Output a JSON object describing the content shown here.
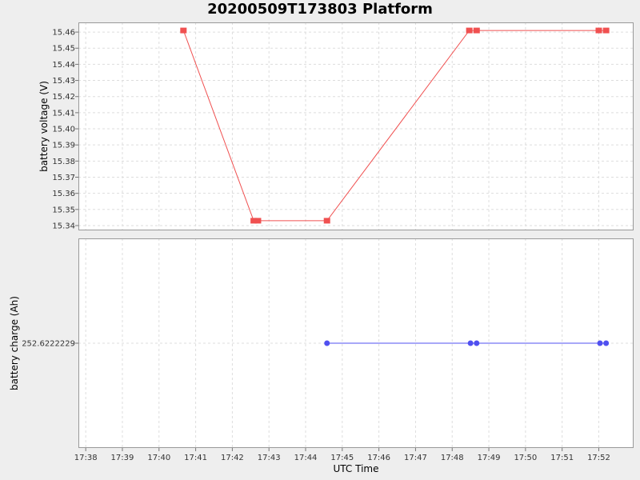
{
  "chart_data": {
    "type": "line",
    "title": "20200509T173803 Platform",
    "xlabel": "UTC Time",
    "x_ticks": [
      "17:38",
      "17:39",
      "17:40",
      "17:41",
      "17:42",
      "17:43",
      "17:44",
      "17:45",
      "17:46",
      "17:47",
      "17:48",
      "17:49",
      "17:50",
      "17:51",
      "17:52"
    ],
    "xlim": [
      "17:37:48",
      "17:52:57"
    ],
    "grid": true,
    "panels": [
      {
        "ylabel": "battery voltage (V)",
        "ylim": [
          15.337,
          15.466
        ],
        "y_ticks": [
          15.34,
          15.35,
          15.36,
          15.37,
          15.38,
          15.39,
          15.4,
          15.41,
          15.42,
          15.43,
          15.44,
          15.45,
          15.46
        ],
        "y_tick_labels": [
          "15.34",
          "15.35",
          "15.36",
          "15.37",
          "15.38",
          "15.39",
          "15.40",
          "15.41",
          "15.42",
          "15.43",
          "15.44",
          "15.45",
          "15.46"
        ],
        "color": "#f05050",
        "marker": "square",
        "series": [
          {
            "values": [
              {
                "x": "17:40:40",
                "y": 15.461
              },
              {
                "x": "17:42:35",
                "y": 15.343
              },
              {
                "x": "17:42:42",
                "y": 15.343
              },
              {
                "x": "17:44:35",
                "y": 15.343
              },
              {
                "x": "17:48:28",
                "y": 15.461
              },
              {
                "x": "17:48:40",
                "y": 15.461
              },
              {
                "x": "17:52:00",
                "y": 15.461
              },
              {
                "x": "17:52:12",
                "y": 15.461
              }
            ]
          }
        ]
      },
      {
        "ylabel": "battery charge (Ah)",
        "ylim": [
          252.6222099,
          252.6222359
        ],
        "y_ticks": [
          252.6222229
        ],
        "y_tick_labels": [
          "252.6222229"
        ],
        "color": "#5050f0",
        "marker": "circle",
        "series": [
          {
            "values": [
              {
                "x": "17:44:35",
                "y": 252.6222229
              },
              {
                "x": "17:48:30",
                "y": 252.6222229
              },
              {
                "x": "17:48:40",
                "y": 252.6222229
              },
              {
                "x": "17:52:02",
                "y": 252.6222229
              },
              {
                "x": "17:52:12",
                "y": 252.6222229
              }
            ]
          }
        ]
      }
    ]
  }
}
